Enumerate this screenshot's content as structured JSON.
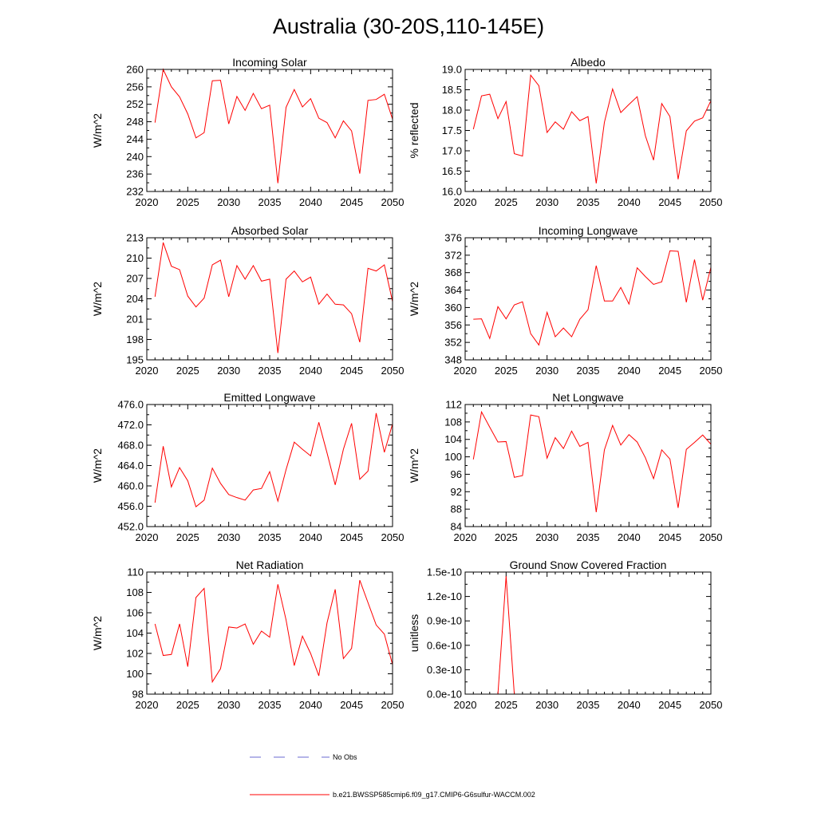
{
  "title": "Australia (30-20S,110-145E)",
  "legend": [
    {
      "label": "No Obs",
      "color": "#6a6ad0",
      "style": "dashed"
    },
    {
      "label": "b.e21.BWSSP585cmip6.f09_g17.CMIP6-G6sulfur-WACCM.002",
      "color": "#ff0000",
      "style": "solid"
    }
  ],
  "chart_data": [
    {
      "type": "line",
      "title": "Incoming Solar",
      "ylabel": "W/m^2",
      "xlabel": "",
      "xlim": [
        2020,
        2050
      ],
      "ylim": [
        232,
        260
      ],
      "xticks": [
        2020,
        2025,
        2030,
        2035,
        2040,
        2045,
        2050
      ],
      "yticks": [
        "232",
        "236",
        "240",
        "244",
        "248",
        "252",
        "256",
        "260"
      ],
      "x": [
        2021,
        2022,
        2023,
        2024,
        2025,
        2026,
        2027,
        2028,
        2029,
        2030,
        2031,
        2032,
        2033,
        2034,
        2035,
        2036,
        2037,
        2038,
        2039,
        2040,
        2041,
        2042,
        2043,
        2044,
        2045,
        2046,
        2047,
        2048,
        2049,
        2050
      ],
      "series": [
        {
          "values": [
            247.8,
            260,
            256,
            253.7,
            249.8,
            244.3,
            245.5,
            257.4,
            257.5,
            247.5,
            253.8,
            250.6,
            254.5,
            251,
            251.8,
            233.9,
            251.3,
            255.4,
            251.4,
            253.3,
            248.8,
            247.8,
            244.3,
            248.2,
            245.9,
            236.1,
            252.9,
            253.1,
            254.3,
            248.6
          ]
        }
      ]
    },
    {
      "type": "line",
      "title": "Albedo",
      "ylabel": "% reflected",
      "xlabel": "",
      "xlim": [
        2020,
        2050
      ],
      "ylim": [
        16.0,
        19.0
      ],
      "xticks": [
        2020,
        2025,
        2030,
        2035,
        2040,
        2045,
        2050
      ],
      "yticks": [
        "16.0",
        "16.5",
        "17.0",
        "17.5",
        "18.0",
        "18.5",
        "19.0"
      ],
      "x": [
        2021,
        2022,
        2023,
        2024,
        2025,
        2026,
        2027,
        2028,
        2029,
        2030,
        2031,
        2032,
        2033,
        2034,
        2035,
        2036,
        2037,
        2038,
        2039,
        2040,
        2041,
        2042,
        2043,
        2044,
        2045,
        2046,
        2047,
        2048,
        2049,
        2050
      ],
      "series": [
        {
          "values": [
            17.53,
            18.35,
            18.39,
            17.79,
            18.21,
            16.93,
            16.87,
            18.86,
            18.6,
            17.45,
            17.71,
            17.53,
            17.96,
            17.74,
            17.84,
            16.2,
            17.7,
            18.52,
            17.94,
            18.14,
            18.33,
            17.37,
            16.77,
            18.16,
            17.84,
            16.3,
            17.49,
            17.73,
            17.81,
            18.23
          ]
        }
      ]
    },
    {
      "type": "line",
      "title": "Absorbed Solar",
      "ylabel": "W/m^2",
      "xlabel": "",
      "xlim": [
        2020,
        2050
      ],
      "ylim": [
        195,
        213
      ],
      "xticks": [
        2020,
        2025,
        2030,
        2035,
        2040,
        2045,
        2050
      ],
      "yticks": [
        "195",
        "198",
        "201",
        "204",
        "207",
        "210",
        "213"
      ],
      "x": [
        2021,
        2022,
        2023,
        2024,
        2025,
        2026,
        2027,
        2028,
        2029,
        2030,
        2031,
        2032,
        2033,
        2034,
        2035,
        2036,
        2037,
        2038,
        2039,
        2040,
        2041,
        2042,
        2043,
        2044,
        2045,
        2046,
        2047,
        2048,
        2049,
        2050
      ],
      "series": [
        {
          "values": [
            204.3,
            212.3,
            208.8,
            208.3,
            204.4,
            202.8,
            204.1,
            209,
            209.7,
            204.3,
            208.9,
            206.9,
            208.9,
            206.6,
            206.9,
            196,
            206.9,
            208.1,
            206.5,
            207.2,
            203.2,
            204.7,
            203.2,
            203.1,
            201.8,
            197.6,
            208.5,
            208.1,
            209,
            203.6
          ]
        }
      ]
    },
    {
      "type": "line",
      "title": "Incoming Longwave",
      "ylabel": "W/m^2",
      "xlabel": "",
      "xlim": [
        2020,
        2050
      ],
      "ylim": [
        348,
        376
      ],
      "xticks": [
        2020,
        2025,
        2030,
        2035,
        2040,
        2045,
        2050
      ],
      "yticks": [
        "348",
        "352",
        "356",
        "360",
        "364",
        "368",
        "372",
        "376"
      ],
      "x": [
        2021,
        2022,
        2023,
        2024,
        2025,
        2026,
        2027,
        2028,
        2029,
        2030,
        2031,
        2032,
        2033,
        2034,
        2035,
        2036,
        2037,
        2038,
        2039,
        2040,
        2041,
        2042,
        2043,
        2044,
        2045,
        2046,
        2047,
        2048,
        2049,
        2050
      ],
      "series": [
        {
          "values": [
            357.3,
            357.4,
            352.9,
            360.2,
            357.4,
            360.6,
            361.3,
            354,
            351.4,
            358.9,
            353.3,
            355.3,
            353.3,
            357.3,
            359.5,
            369.6,
            361.5,
            361.5,
            364.6,
            360.8,
            369.1,
            367.1,
            365.3,
            365.9,
            373,
            372.9,
            361.2,
            371,
            361.7,
            369.2
          ]
        }
      ]
    },
    {
      "type": "line",
      "title": "Emitted Longwave",
      "ylabel": "W/m^2",
      "xlabel": "",
      "xlim": [
        2020,
        2050
      ],
      "ylim": [
        452.0,
        476.0
      ],
      "xticks": [
        2020,
        2025,
        2030,
        2035,
        2040,
        2045,
        2050
      ],
      "yticks": [
        "452.0",
        "456.0",
        "460.0",
        "464.0",
        "468.0",
        "472.0",
        "476.0"
      ],
      "x": [
        2021,
        2022,
        2023,
        2024,
        2025,
        2026,
        2027,
        2028,
        2029,
        2030,
        2031,
        2032,
        2033,
        2034,
        2035,
        2036,
        2037,
        2038,
        2039,
        2040,
        2041,
        2042,
        2043,
        2044,
        2045,
        2046,
        2047,
        2048,
        2049,
        2050
      ],
      "series": [
        {
          "values": [
            456.7,
            467.8,
            459.8,
            463.6,
            461,
            455.9,
            457.2,
            463.5,
            460.5,
            458.3,
            457.7,
            457.2,
            459.2,
            459.5,
            462.8,
            457,
            463.2,
            468.6,
            467.2,
            465.9,
            472.5,
            466.5,
            460.2,
            467.2,
            472.3,
            461.3,
            462.9,
            474.3,
            466.6,
            472.2
          ]
        }
      ]
    },
    {
      "type": "line",
      "title": "Net Longwave",
      "ylabel": "W/m^2",
      "xlabel": "",
      "xlim": [
        2020,
        2050
      ],
      "ylim": [
        84,
        112
      ],
      "xticks": [
        2020,
        2025,
        2030,
        2035,
        2040,
        2045,
        2050
      ],
      "yticks": [
        "84",
        "88",
        "92",
        "96",
        "100",
        "104",
        "108",
        "112"
      ],
      "x": [
        2021,
        2022,
        2023,
        2024,
        2025,
        2026,
        2027,
        2028,
        2029,
        2030,
        2031,
        2032,
        2033,
        2034,
        2035,
        2036,
        2037,
        2038,
        2039,
        2040,
        2041,
        2042,
        2043,
        2044,
        2045,
        2046,
        2047,
        2048,
        2049,
        2050
      ],
      "series": [
        {
          "values": [
            99.4,
            110.3,
            106.8,
            103.4,
            103.5,
            95.3,
            95.7,
            109.6,
            109.2,
            99.7,
            104.4,
            101.9,
            105.9,
            102.4,
            103.3,
            87.3,
            101.6,
            107.2,
            102.7,
            105.1,
            103.4,
            99.8,
            95,
            101.6,
            99.5,
            88.3,
            101.7,
            103.3,
            105,
            102.9
          ]
        }
      ]
    },
    {
      "type": "line",
      "title": "Net Radiation",
      "ylabel": "W/m^2",
      "xlabel": "",
      "xlim": [
        2020,
        2050
      ],
      "ylim": [
        98,
        110
      ],
      "xticks": [
        2020,
        2025,
        2030,
        2035,
        2040,
        2045,
        2050
      ],
      "yticks": [
        "98",
        "100",
        "102",
        "104",
        "106",
        "108",
        "110"
      ],
      "x": [
        2021,
        2022,
        2023,
        2024,
        2025,
        2026,
        2027,
        2028,
        2029,
        2030,
        2031,
        2032,
        2033,
        2034,
        2035,
        2036,
        2037,
        2038,
        2039,
        2040,
        2041,
        2042,
        2043,
        2044,
        2045,
        2046,
        2047,
        2048,
        2049,
        2050
      ],
      "series": [
        {
          "values": [
            104.9,
            101.8,
            101.9,
            104.9,
            100.7,
            107.5,
            108.4,
            99.2,
            100.5,
            104.6,
            104.5,
            104.9,
            102.9,
            104.2,
            103.6,
            108.8,
            105.3,
            100.8,
            103.7,
            102,
            99.8,
            105,
            108.3,
            101.5,
            102.5,
            109.2,
            107,
            104.8,
            103.9,
            100.9
          ]
        }
      ]
    },
    {
      "type": "line",
      "title": "Ground Snow Covered Fraction",
      "ylabel": "unitless",
      "xlabel": "",
      "xlim": [
        2020,
        2050
      ],
      "ylim": [
        0,
        1.5e-10
      ],
      "xticks": [
        2020,
        2025,
        2030,
        2035,
        2040,
        2045,
        2050
      ],
      "yticks": [
        "0.0e-10",
        "0.3e-10",
        "0.6e-10",
        "0.9e-10",
        "1.2e-10",
        "1.5e-10"
      ],
      "x": [
        2021,
        2022,
        2023,
        2024,
        2025,
        2026,
        2027,
        2028,
        2029,
        2030,
        2031,
        2032,
        2033,
        2034,
        2035,
        2036,
        2037,
        2038,
        2039,
        2040,
        2041,
        2042,
        2043,
        2044,
        2045,
        2046,
        2047,
        2048,
        2049,
        2050
      ],
      "series": [
        {
          "values": [
            0,
            0,
            0,
            0,
            1.45e-10,
            0,
            0,
            0,
            0,
            0,
            0,
            0,
            0,
            0,
            0,
            0,
            0,
            0,
            0,
            0,
            0,
            0,
            0,
            0,
            0,
            0,
            0,
            0,
            0,
            0
          ]
        }
      ]
    }
  ]
}
